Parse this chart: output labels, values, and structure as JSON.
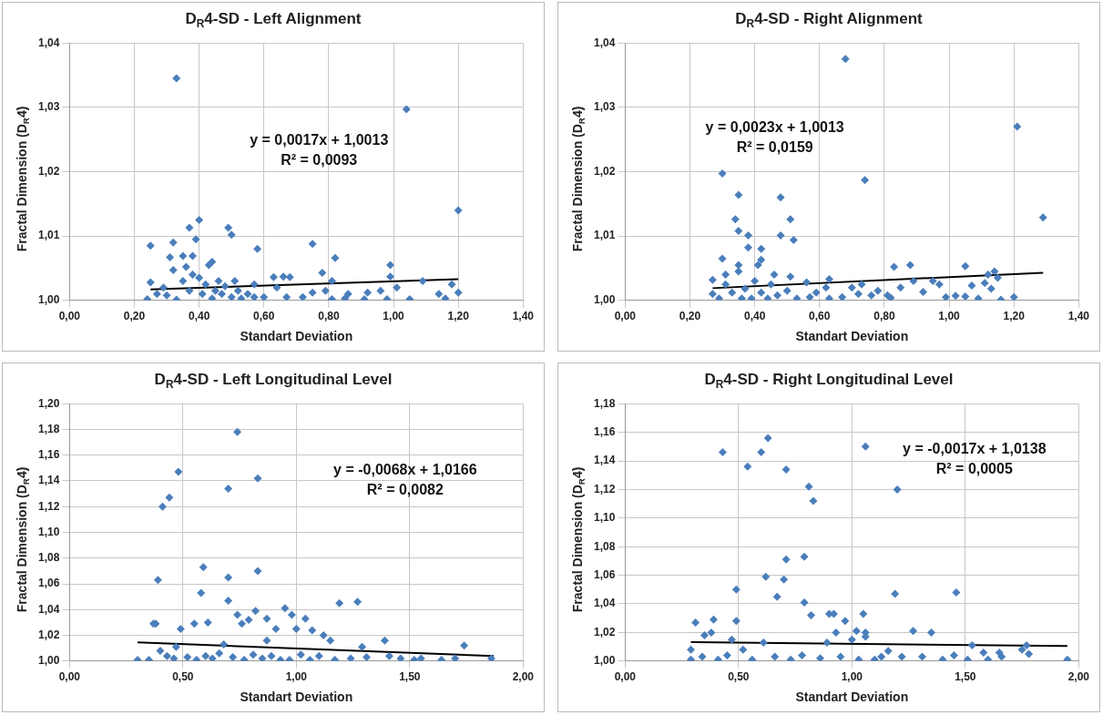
{
  "chart_data": [
    {
      "type": "scatter",
      "title": "D$_{R}$4-SD - Left Alignment",
      "xlabel": "Standart Deviation",
      "ylabel": "Fractal Dimension (D$_{R}$4)",
      "marker": "diamond",
      "grid": true,
      "xlim": [
        0,
        1.4
      ],
      "xticks": [
        {
          "value": 0,
          "label": "0,00"
        },
        {
          "value": 0.2,
          "label": "0,20"
        },
        {
          "value": 0.4,
          "label": "0,40"
        },
        {
          "value": 0.6,
          "label": "0,60"
        },
        {
          "value": 0.8,
          "label": "0,80"
        },
        {
          "value": 1,
          "label": "1,00"
        },
        {
          "value": 1.2,
          "label": "1,20"
        },
        {
          "value": 1.4,
          "label": "1,40"
        }
      ],
      "ylim": [
        1,
        1.04
      ],
      "yticks": [
        {
          "value": 1,
          "label": "1,00"
        },
        {
          "value": 1.01,
          "label": "1,01"
        },
        {
          "value": 1.02,
          "label": "1,02"
        },
        {
          "value": 1.03,
          "label": "1,03"
        },
        {
          "value": 1.04,
          "label": "1,04"
        }
      ],
      "annotations": [
        "y = 0,0017x + 1,0013",
        "R² = 0,0093"
      ],
      "series": [
        {
          "type": "scatter",
          "color": "#4a7ebb",
          "x": [
            0.33,
            1.04,
            1.2,
            0.4,
            0.37,
            0.49,
            0.5,
            0.39,
            0.32,
            0.25,
            0.75,
            0.58,
            0.31,
            0.35,
            0.38,
            0.82,
            0.44,
            0.43,
            0.99,
            0.36,
            0.78,
            0.32,
            0.99,
            0.63,
            0.66,
            0.68,
            1.09,
            1.18,
            0.81,
            0.25,
            0.57,
            0.51,
            1.01,
            0.96,
            0.75,
            0.79,
            1.2,
            1.14,
            0.92,
            0.86,
            0.72,
            0.67,
            0.6,
            0.81,
            0.85,
            0.91,
            0.98,
            1.05,
            1.16,
            0.24,
            0.29,
            0.3,
            0.33,
            0.35,
            0.37,
            0.38,
            0.4,
            0.41,
            0.42,
            0.44,
            0.45,
            0.46,
            0.47,
            0.48,
            0.5,
            0.52,
            0.53,
            0.55,
            0.57,
            0.64,
            0.27
          ],
          "values": [
            1.0345,
            1.0297,
            1.014,
            1.0125,
            1.0113,
            1.0113,
            1.0102,
            1.0095,
            1.009,
            1.0085,
            1.0088,
            1.008,
            1.0067,
            1.0069,
            1.0069,
            1.0066,
            1.006,
            1.0055,
            1.0055,
            1.0052,
            1.0043,
            1.0047,
            1.0037,
            1.0036,
            1.0037,
            1.0036,
            1.003,
            1.0025,
            1.003,
            1.0028,
            1.0025,
            1.003,
            1.002,
            1.0015,
            1.0012,
            1.0015,
            1.0012,
            1.001,
            1.0012,
            1.001,
            1.0005,
            1.0005,
            1.0005,
            1.0002,
            1.0003,
            1.0002,
            1.0002,
            1.0002,
            1.0003,
            1.0002,
            1.002,
            1.0008,
            1.0001,
            1.003,
            1.0015,
            1.004,
            1.0035,
            1.001,
            1.0025,
            1.0003,
            1.0015,
            1.003,
            1.001,
            1.0022,
            1.0005,
            1.0015,
            1.0003,
            1.001,
            1.0005,
            1.002,
            1.001
          ]
        },
        {
          "type": "line",
          "color": "#000000",
          "marker": "none",
          "x": [
            0.25,
            1.2
          ],
          "values": [
            1.0017,
            1.0033
          ]
        }
      ]
    },
    {
      "type": "scatter",
      "title": "D$_{R}$4-SD - Right Alignment",
      "xlabel": "Standart Deviation",
      "ylabel": "Fractal Dimension (D$_{R}$4)",
      "marker": "diamond",
      "grid": true,
      "xlim": [
        0,
        1.4
      ],
      "xticks": [
        {
          "value": 0,
          "label": "0,00"
        },
        {
          "value": 0.2,
          "label": "0,20"
        },
        {
          "value": 0.4,
          "label": "0,40"
        },
        {
          "value": 0.6,
          "label": "0,60"
        },
        {
          "value": 0.8,
          "label": "0,80"
        },
        {
          "value": 1,
          "label": "1,00"
        },
        {
          "value": 1.2,
          "label": "1,20"
        },
        {
          "value": 1.4,
          "label": "1,40"
        }
      ],
      "ylim": [
        1,
        1.04
      ],
      "yticks": [
        {
          "value": 1,
          "label": "1,00"
        },
        {
          "value": 1.01,
          "label": "1,01"
        },
        {
          "value": 1.02,
          "label": "1,02"
        },
        {
          "value": 1.03,
          "label": "1,03"
        },
        {
          "value": 1.04,
          "label": "1,04"
        }
      ],
      "annotations": [
        "y = 0,0023x + 1,0013",
        "R² = 0,0159"
      ],
      "series": [
        {
          "type": "scatter",
          "color": "#4a7ebb",
          "x": [
            0.68,
            1.21,
            0.3,
            0.74,
            0.35,
            0.48,
            1.29,
            0.34,
            0.51,
            0.35,
            0.38,
            0.48,
            0.52,
            0.38,
            0.42,
            0.3,
            0.42,
            0.41,
            0.35,
            0.88,
            1.05,
            0.83,
            0.35,
            1.14,
            1.12,
            0.31,
            0.46,
            0.51,
            0.63,
            1.15,
            0.89,
            0.95,
            0.27,
            0.56,
            0.73,
            0.97,
            1.07,
            1.11,
            0.7,
            0.85,
            0.62,
            0.78,
            0.72,
            0.92,
            1.13,
            0.27,
            0.67,
            0.76,
            0.81,
            0.82,
            0.99,
            1.02,
            1.05,
            1.09,
            1.16,
            1.2,
            0.63,
            0.59,
            0.57,
            0.53,
            0.5,
            0.47,
            0.45,
            0.44,
            0.42,
            0.4,
            0.39,
            0.37,
            0.36,
            0.33,
            0.31,
            0.29
          ],
          "values": [
            1.0375,
            1.027,
            1.0197,
            1.0187,
            1.0164,
            1.016,
            1.0129,
            1.0126,
            1.0126,
            1.0108,
            1.0101,
            1.0101,
            1.0094,
            1.0082,
            1.008,
            1.0065,
            1.0063,
            1.0055,
            1.0055,
            1.0055,
            1.0053,
            1.0052,
            1.0045,
            1.0045,
            1.004,
            1.004,
            1.004,
            1.0037,
            1.0033,
            1.0035,
            1.003,
            1.003,
            1.0032,
            1.0028,
            1.0025,
            1.0025,
            1.0023,
            1.0027,
            1.002,
            1.002,
            1.002,
            1.0015,
            1.001,
            1.0013,
            1.0018,
            1.001,
            1.0005,
            1.0008,
            1.0008,
            1.0004,
            1.0005,
            1.0007,
            1.0006,
            1.0003,
            1.0001,
            1.0005,
            1.0003,
            1.0012,
            1.0005,
            1.0003,
            1.0015,
            1.0008,
            1.0025,
            1.0003,
            1.0012,
            1.003,
            1.0003,
            1.0018,
            1.0003,
            1.0012,
            1.0025,
            1.0003
          ]
        },
        {
          "type": "line",
          "color": "#000000",
          "marker": "none",
          "x": [
            0.27,
            1.29
          ],
          "values": [
            1.0019,
            1.0043
          ]
        }
      ]
    },
    {
      "type": "scatter",
      "title": "D$_{R}$4-SD - Left Longitudinal Level",
      "xlabel": "Standart Deviation",
      "ylabel": "Fractal Dimension (D$_{R}$4)",
      "marker": "diamond",
      "grid": true,
      "xlim": [
        0,
        2
      ],
      "xticks": [
        {
          "value": 0,
          "label": "0,00"
        },
        {
          "value": 0.5,
          "label": "0,50"
        },
        {
          "value": 1,
          "label": "1,00"
        },
        {
          "value": 1.5,
          "label": "1,50"
        },
        {
          "value": 2,
          "label": "2,00"
        }
      ],
      "ylim": [
        1,
        1.2
      ],
      "yticks": [
        {
          "value": 1,
          "label": "1,00"
        },
        {
          "value": 1.02,
          "label": "1,02"
        },
        {
          "value": 1.04,
          "label": "1,04"
        },
        {
          "value": 1.06,
          "label": "1,06"
        },
        {
          "value": 1.08,
          "label": "1,08"
        },
        {
          "value": 1.1,
          "label": "1,10"
        },
        {
          "value": 1.12,
          "label": "1,12"
        },
        {
          "value": 1.14,
          "label": "1,14"
        },
        {
          "value": 1.16,
          "label": "1,16"
        },
        {
          "value": 1.18,
          "label": "1,18"
        },
        {
          "value": 1.2,
          "label": "1,20"
        }
      ],
      "annotations": [
        "y = -0,0068x + 1,0166",
        "R² = 0,0082"
      ],
      "series": [
        {
          "type": "scatter",
          "color": "#4a7ebb",
          "x": [
            0.74,
            0.48,
            0.83,
            0.7,
            0.44,
            0.41,
            0.59,
            0.83,
            0.7,
            0.39,
            0.58,
            0.7,
            1.27,
            1.19,
            0.95,
            0.82,
            0.98,
            0.74,
            1.04,
            0.87,
            0.79,
            0.61,
            0.76,
            0.37,
            0.38,
            0.55,
            0.49,
            0.91,
            1,
            1.07,
            1.12,
            1.15,
            0.87,
            1.39,
            1.74,
            1.29,
            0.68,
            0.47,
            0.3,
            0.35,
            0.4,
            0.43,
            0.46,
            0.52,
            0.56,
            0.6,
            0.63,
            0.66,
            0.72,
            0.77,
            0.81,
            0.85,
            0.89,
            0.93,
            0.97,
            1.02,
            1.06,
            1.1,
            1.17,
            1.24,
            1.31,
            1.41,
            1.46,
            1.52,
            1.55,
            1.64,
            1.7,
            1.86
          ],
          "values": [
            1.178,
            1.147,
            1.142,
            1.134,
            1.127,
            1.12,
            1.073,
            1.07,
            1.065,
            1.063,
            1.053,
            1.047,
            1.046,
            1.045,
            1.041,
            1.039,
            1.036,
            1.036,
            1.033,
            1.033,
            1.032,
            1.03,
            1.029,
            1.029,
            1.029,
            1.029,
            1.025,
            1.025,
            1.025,
            1.024,
            1.02,
            1.016,
            1.016,
            1.016,
            1.012,
            1.011,
            1.013,
            1.011,
            1.001,
            1.001,
            1.008,
            1.004,
            1.002,
            1.003,
            1.001,
            1.004,
            1.002,
            1.006,
            1.003,
            1.001,
            1.005,
            1.002,
            1.004,
            1.001,
            1.001,
            1.005,
            1.001,
            1.004,
            1.001,
            1.002,
            1.003,
            1.004,
            1.002,
            1.001,
            1.002,
            1.001,
            1.002,
            1.002
          ]
        },
        {
          "type": "line",
          "color": "#000000",
          "marker": "none",
          "x": [
            0.3,
            1.87
          ],
          "values": [
            1.0146,
            1.0039
          ]
        }
      ]
    },
    {
      "type": "scatter",
      "title": "D$_{R}$4-SD - Right Longitudinal Level",
      "xlabel": "Standart Deviation",
      "ylabel": "Fractal Dimension (D$_{R}$4)",
      "marker": "diamond",
      "grid": true,
      "xlim": [
        0,
        2
      ],
      "xticks": [
        {
          "value": 0,
          "label": "0,00"
        },
        {
          "value": 0.5,
          "label": "0,50"
        },
        {
          "value": 1,
          "label": "1,00"
        },
        {
          "value": 1.5,
          "label": "1,50"
        },
        {
          "value": 2,
          "label": "2,00"
        }
      ],
      "ylim": [
        1,
        1.18
      ],
      "yticks": [
        {
          "value": 1,
          "label": "1,00"
        },
        {
          "value": 1.02,
          "label": "1,02"
        },
        {
          "value": 1.04,
          "label": "1,04"
        },
        {
          "value": 1.06,
          "label": "1,06"
        },
        {
          "value": 1.08,
          "label": "1,08"
        },
        {
          "value": 1.1,
          "label": "1,10"
        },
        {
          "value": 1.12,
          "label": "1,12"
        },
        {
          "value": 1.14,
          "label": "1,14"
        },
        {
          "value": 1.16,
          "label": "1,16"
        },
        {
          "value": 1.18,
          "label": "1,18"
        }
      ],
      "annotations": [
        "y = -0,0017x + 1,0138",
        "R² = 0,0005"
      ],
      "series": [
        {
          "type": "scatter",
          "color": "#4a7ebb",
          "x": [
            0.63,
            1.06,
            0.43,
            0.6,
            0.54,
            0.71,
            0.81,
            1.2,
            0.83,
            0.79,
            0.71,
            0.62,
            0.7,
            0.49,
            1.46,
            1.19,
            0.67,
            0.79,
            0.82,
            1.05,
            0.9,
            0.92,
            0.39,
            0.31,
            0.49,
            0.97,
            1.02,
            1.27,
            1.35,
            0.93,
            1.06,
            0.38,
            0.35,
            1.06,
            0.47,
            1,
            0.61,
            0.89,
            1.53,
            1.77,
            0.29,
            0.52,
            1.16,
            1.58,
            1.65,
            1.75,
            0.29,
            0.34,
            0.41,
            0.45,
            0.56,
            0.66,
            0.73,
            0.78,
            0.86,
            0.95,
            1.03,
            1.1,
            1.13,
            1.22,
            1.31,
            1.4,
            1.45,
            1.51,
            1.6,
            1.66,
            1.78,
            1.95
          ],
          "values": [
            1.156,
            1.15,
            1.146,
            1.146,
            1.136,
            1.134,
            1.122,
            1.12,
            1.112,
            1.073,
            1.071,
            1.059,
            1.057,
            1.05,
            1.048,
            1.047,
            1.045,
            1.041,
            1.032,
            1.033,
            1.033,
            1.033,
            1.029,
            1.027,
            1.028,
            1.028,
            1.021,
            1.021,
            1.02,
            1.02,
            1.02,
            1.02,
            1.018,
            1.017,
            1.015,
            1.015,
            1.013,
            1.013,
            1.011,
            1.011,
            1.008,
            1.008,
            1.007,
            1.006,
            1.006,
            1.008,
            1.001,
            1.003,
            1.001,
            1.004,
            1.001,
            1.003,
            1.001,
            1.004,
            1.002,
            1.003,
            1.001,
            1.001,
            1.003,
            1.003,
            1.003,
            1.001,
            1.004,
            1.001,
            1.001,
            1.003,
            1.005,
            1.001
          ]
        },
        {
          "type": "line",
          "color": "#000000",
          "marker": "none",
          "x": [
            0.29,
            1.95
          ],
          "values": [
            1.0133,
            1.0105
          ]
        }
      ]
    }
  ]
}
